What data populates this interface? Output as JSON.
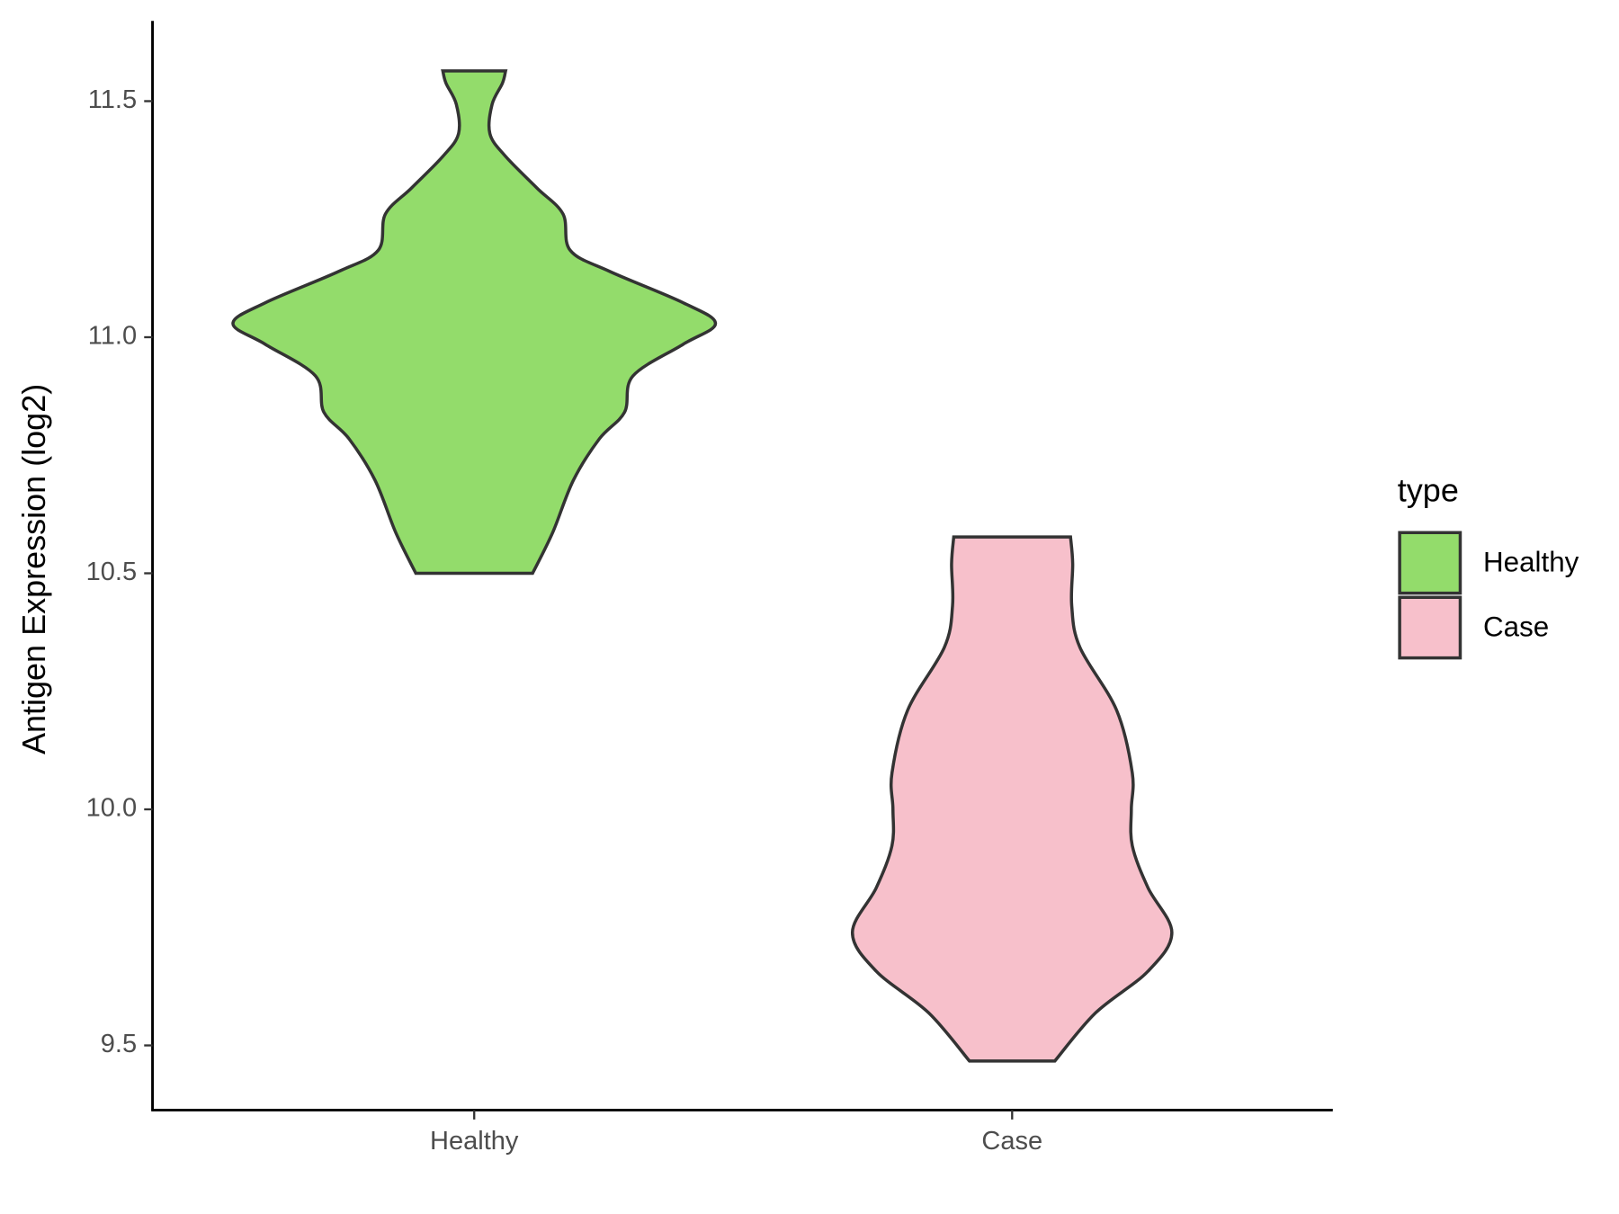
{
  "chart_data": {
    "type": "violin",
    "y_label": "Antigen Expression (log2)",
    "ylim": [
      9.363,
      11.67
    ],
    "yticks": [
      9.5,
      {
        "value": 10,
        "label": "10.0"
      },
      10.5,
      {
        "value": 11,
        "label": "11.0"
      },
      11.5
    ],
    "categories": [
      "Healthy",
      "Case"
    ],
    "legend_title": "type",
    "legend_position": "right",
    "violins": [
      {
        "name": "Healthy",
        "color": "#93dc6b",
        "y": [
          11.564,
          11.538,
          11.493,
          11.431,
          11.383,
          11.316,
          11.261,
          11.184,
          11.139,
          11.073,
          11.029,
          10.985,
          10.918,
          10.841,
          10.785,
          10.697,
          10.586,
          10.5
        ],
        "density": [
          0.13,
          0.117,
          0.074,
          0.065,
          0.13,
          0.26,
          0.368,
          0.398,
          0.563,
          0.866,
          1,
          0.866,
          0.658,
          0.623,
          0.519,
          0.411,
          0.325,
          0.242
        ]
      },
      {
        "name": "Case",
        "color": "#f7c0cb",
        "y": [
          10.577,
          10.52,
          10.431,
          10.343,
          10.21,
          10.077,
          10.0,
          9.923,
          9.834,
          9.739,
          9.657,
          9.569,
          9.467
        ],
        "density": [
          0.242,
          0.251,
          0.247,
          0.281,
          0.433,
          0.498,
          0.494,
          0.498,
          0.563,
          0.662,
          0.563,
          0.346,
          0.177
        ]
      }
    ]
  }
}
